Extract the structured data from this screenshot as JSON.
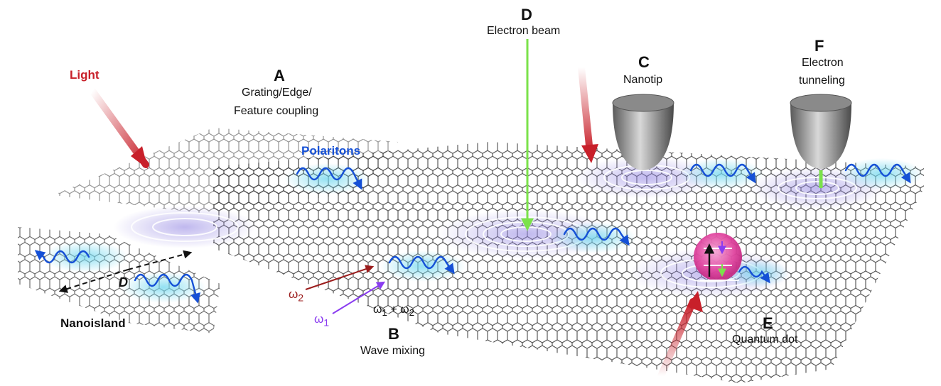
{
  "labels": {
    "light": "Light",
    "a_letter": "A",
    "a_desc_1": "Grating/Edge/",
    "a_desc_2": "Feature coupling",
    "polaritons": "Polaritons",
    "d_letter": "D",
    "d_desc": "Electron beam",
    "c_letter": "C",
    "c_desc": "Nanotip",
    "f_letter": "F",
    "f_desc_1": "Electron",
    "f_desc_2": "tunneling",
    "nanoisland": "Nanoisland",
    "d_italic": "D",
    "omega2": "ω",
    "omega2_sub": "2",
    "omega1": "ω",
    "omega1_sub": "1",
    "sum_w1": "ω",
    "sum_w1_sub": "1",
    "sum_plus": " + ω",
    "sum_w2_sub": "2",
    "b_letter": "B",
    "b_desc": "Wave mixing",
    "e_letter": "E",
    "e_desc": "Quantum dot"
  },
  "colors": {
    "light_red": "#c8202a",
    "polariton_blue": "#1550d6",
    "glow_cyan": "#7fdcef",
    "beam_green": "#7be24a",
    "omega2_darkred": "#9b1c1c",
    "omega1_purple": "#8a3cf0",
    "qd_pink": "#e0459f"
  },
  "icons": [
    "nanotip-icon",
    "quantum-dot-icon",
    "polariton-wave-icon",
    "arrow-icon"
  ]
}
